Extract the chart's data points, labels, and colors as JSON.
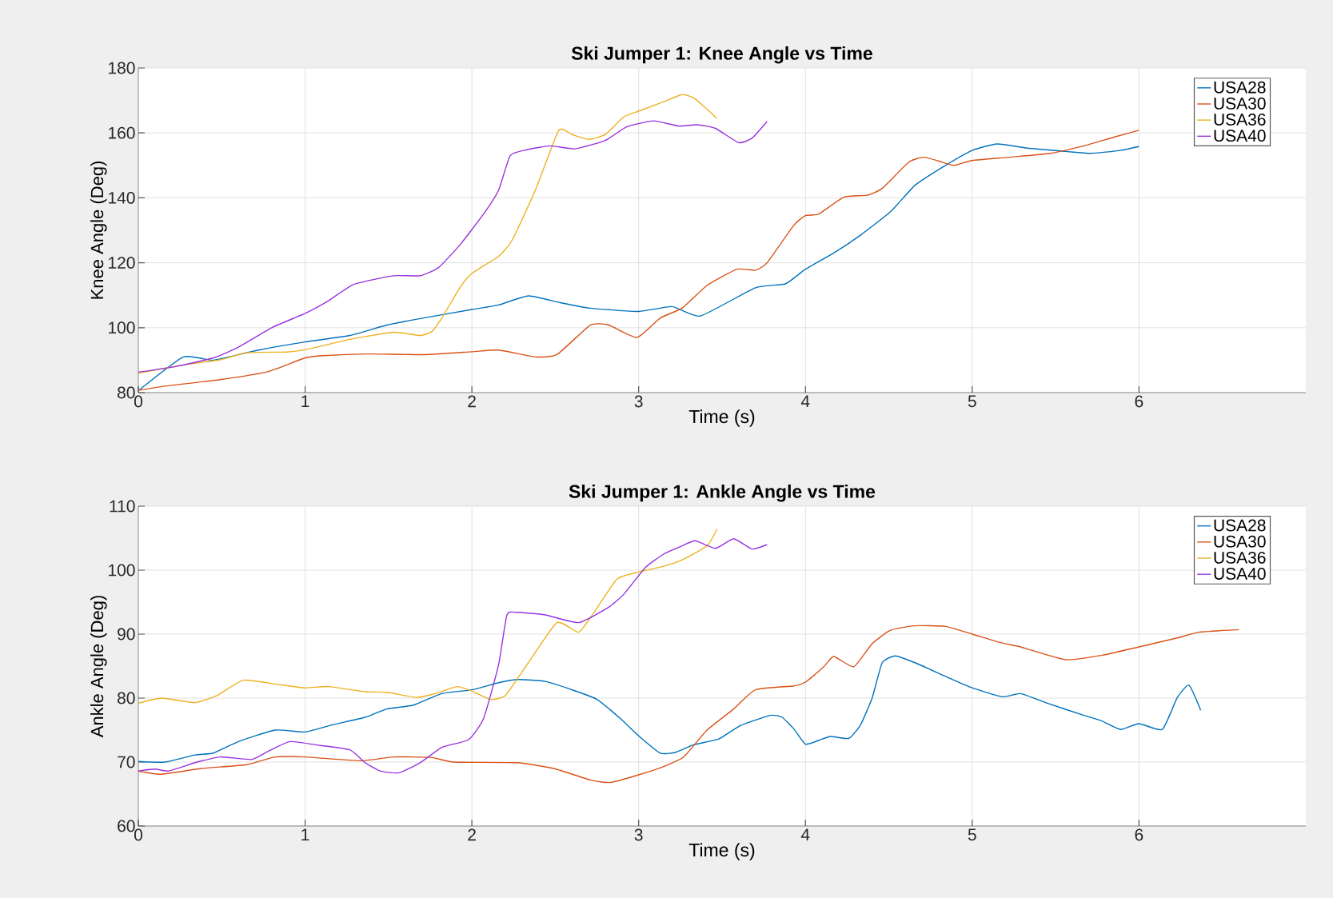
{
  "chart_data": [
    {
      "type": "line",
      "title": "Ski Jumper 1: Knee Angle vs Time",
      "xlabel": "Time (s)",
      "ylabel": "Knee Angle (Deg)",
      "xlim": [
        0,
        7
      ],
      "ylim": [
        80,
        180
      ],
      "xticks": [
        0,
        1,
        2,
        3,
        4,
        5,
        6
      ],
      "yticks": [
        80,
        100,
        120,
        140,
        160,
        180
      ],
      "grid": true,
      "legend": "top right",
      "series": [
        {
          "name": "USA28",
          "color": "#0072bd",
          "x": [
            0,
            0.27,
            0.45,
            0.71,
            1.0,
            1.27,
            1.49,
            1.71,
            2.0,
            2.16,
            2.34,
            2.53,
            2.71,
            3.0,
            3.2,
            3.37,
            3.7,
            3.88,
            4.0,
            4.17,
            4.33,
            4.51,
            4.66,
            4.84,
            5.0,
            5.15,
            5.33,
            5.56,
            5.71,
            5.89,
            6.0
          ],
          "values": [
            80.6,
            91,
            90,
            93,
            95.6,
            97.6,
            100.8,
            103,
            105.6,
            107,
            109.8,
            107.7,
            106,
            105,
            106.5,
            103.6,
            112.3,
            113.5,
            118,
            123,
            128.5,
            135.7,
            144,
            150,
            154.6,
            156.6,
            155.3,
            154.3,
            153.7,
            154.6,
            155.8
          ]
        },
        {
          "name": "USA30",
          "color": "#d95319",
          "x": [
            0,
            0.16,
            0.49,
            0.78,
            1.0,
            1.11,
            1.38,
            1.71,
            2.0,
            2.16,
            2.38,
            2.51,
            2.71,
            2.82,
            2.99,
            3.13,
            3.26,
            3.41,
            3.59,
            3.7,
            3.77,
            3.93,
            4.0,
            4.08,
            4.23,
            4.37,
            4.46,
            4.62,
            4.71,
            4.8,
            4.89,
            5.0,
            5.22,
            5.47,
            5.67,
            5.85,
            6.0
          ],
          "values": [
            80.7,
            82,
            84,
            86.5,
            90.7,
            91.4,
            91.9,
            91.7,
            92.6,
            93.1,
            91,
            91.7,
            100.8,
            100.8,
            97,
            103,
            106,
            113,
            118,
            117.7,
            120,
            131.5,
            134.5,
            135,
            140.2,
            140.8,
            142.9,
            151,
            152.5,
            151.3,
            150,
            151.5,
            152.5,
            153.7,
            156,
            158.7,
            160.8
          ]
        },
        {
          "name": "USA36",
          "color": "#edb120",
          "x": [
            0,
            0.29,
            0.49,
            0.65,
            0.89,
            1.0,
            1.27,
            1.53,
            1.69,
            1.76,
            1.82,
            1.93,
            2.0,
            2.16,
            2.24,
            2.38,
            2.52,
            2.6,
            2.7,
            2.8,
            2.91,
            3.0,
            3.15,
            3.26,
            3.33,
            3.41,
            3.47
          ],
          "values": [
            86,
            88.7,
            90.1,
            92.3,
            92.5,
            93.2,
            96.4,
            98.6,
            97.6,
            98.8,
            103,
            112.5,
            116.7,
            122,
            126.8,
            142.3,
            160.7,
            159.5,
            158,
            159.5,
            164.9,
            166.7,
            169.6,
            171.8,
            170.8,
            167.3,
            164.4
          ]
        },
        {
          "name": "USA40",
          "color": "#9933dd",
          "x": [
            0,
            0.23,
            0.45,
            0.6,
            0.8,
            1.0,
            1.14,
            1.29,
            1.53,
            1.69,
            1.8,
            1.93,
            2.07,
            2.16,
            2.23,
            2.33,
            2.47,
            2.62,
            2.8,
            2.93,
            3.09,
            3.24,
            3.35,
            3.46,
            3.6,
            3.68,
            3.77
          ],
          "values": [
            86.3,
            88.1,
            90.7,
            94,
            100,
            104.4,
            108.3,
            113.3,
            116,
            116,
            118.5,
            125.6,
            135,
            142.3,
            153,
            154.8,
            156,
            155.1,
            157.7,
            161.9,
            163.7,
            162.1,
            162.5,
            161.4,
            157,
            158.4,
            163.5
          ]
        }
      ]
    },
    {
      "type": "line",
      "title": "Ski Jumper 1: Ankle Angle vs Time",
      "xlabel": "Time (s)",
      "ylabel": "Ankle Angle (Deg)",
      "xlim": [
        0,
        7
      ],
      "ylim": [
        60,
        110
      ],
      "xticks": [
        0,
        1,
        2,
        3,
        4,
        5,
        6
      ],
      "yticks": [
        60,
        70,
        80,
        90,
        100,
        110
      ],
      "grid": true,
      "legend": "top right",
      "series": [
        {
          "name": "USA28",
          "color": "#0072bd",
          "x": [
            0,
            0.16,
            0.34,
            0.45,
            0.6,
            0.82,
            1.0,
            1.16,
            1.36,
            1.49,
            1.65,
            1.82,
            2.0,
            2.16,
            2.28,
            2.44,
            2.6,
            2.75,
            2.89,
            3.0,
            3.13,
            3.22,
            3.33,
            3.48,
            3.61,
            3.79,
            3.86,
            3.93,
            4.0,
            4.08,
            4.15,
            4.26,
            4.33,
            4.4,
            4.46,
            4.54,
            4.66,
            4.84,
            5.0,
            5.18,
            5.29,
            5.45,
            5.67,
            5.78,
            5.89,
            6.0,
            6.14,
            6.23,
            6.3,
            6.37
          ],
          "values": [
            70.1,
            70,
            71.1,
            71.4,
            73.2,
            75,
            74.7,
            75.8,
            77,
            78.3,
            78.9,
            80.7,
            81.3,
            82.4,
            82.9,
            82.6,
            81.3,
            79.8,
            76.8,
            74.1,
            71.4,
            71.5,
            72.7,
            73.6,
            75.7,
            77.3,
            77,
            75.2,
            72.8,
            73.4,
            74,
            73.7,
            75.8,
            80,
            85.5,
            86.6,
            85.5,
            83.4,
            81.6,
            80.2,
            80.7,
            79.2,
            77.3,
            76.4,
            75.1,
            76,
            75.1,
            80.1,
            82,
            78.1
          ]
        },
        {
          "name": "USA30",
          "color": "#d95319",
          "x": [
            0,
            0.14,
            0.38,
            0.65,
            0.82,
            1.0,
            1.33,
            1.53,
            1.76,
            1.89,
            2.27,
            2.49,
            2.71,
            2.83,
            3.0,
            3.15,
            3.27,
            3.41,
            3.57,
            3.7,
            3.93,
            4.0,
            4.11,
            4.17,
            4.29,
            4.4,
            4.51,
            4.65,
            4.84,
            5.0,
            5.18,
            5.29,
            5.56,
            5.78,
            6.0,
            6.23,
            6.36,
            6.6
          ],
          "values": [
            68.6,
            68.1,
            69,
            69.6,
            70.8,
            70.8,
            70.2,
            70.8,
            70.7,
            70,
            69.9,
            69,
            67.2,
            66.8,
            68,
            69.3,
            70.8,
            75,
            78.3,
            81.3,
            81.9,
            82.5,
            84.9,
            86.5,
            84.9,
            88.5,
            90.6,
            91.3,
            91.2,
            90,
            88.6,
            88,
            86,
            86.7,
            88,
            89.4,
            90.3,
            90.7
          ]
        },
        {
          "name": "USA36",
          "color": "#edb120",
          "x": [
            0,
            0.14,
            0.34,
            0.47,
            0.63,
            0.82,
            1.0,
            1.14,
            1.36,
            1.49,
            1.67,
            1.78,
            1.91,
            2.0,
            2.11,
            2.2,
            2.33,
            2.51,
            2.64,
            2.73,
            2.87,
            3.0,
            3.15,
            3.26,
            3.41,
            3.47
          ],
          "values": [
            79.2,
            80,
            79.3,
            80.4,
            82.8,
            82.2,
            81.6,
            81.8,
            81,
            80.9,
            80.1,
            80.7,
            81.8,
            81.1,
            79.8,
            80.4,
            85.2,
            91.8,
            90.3,
            93.3,
            98.6,
            99.7,
            100.6,
            101.6,
            103.8,
            106.4
          ]
        },
        {
          "name": "USA40",
          "color": "#9933dd",
          "x": [
            0,
            0.1,
            0.18,
            0.34,
            0.49,
            0.68,
            0.78,
            0.91,
            1.09,
            1.27,
            1.36,
            1.45,
            1.56,
            1.69,
            1.82,
            1.98,
            2.07,
            2.16,
            2.21,
            2.27,
            2.44,
            2.64,
            2.82,
            2.91,
            3.04,
            3.15,
            3.26,
            3.34,
            3.46,
            3.57,
            3.68,
            3.77
          ],
          "values": [
            68.6,
            68.9,
            68.6,
            69.9,
            70.8,
            70.4,
            71.7,
            73.2,
            72.6,
            71.9,
            69.9,
            68.6,
            68.3,
            69.9,
            72.3,
            73.5,
            76.8,
            85.2,
            93,
            93.4,
            93,
            91.8,
            94.2,
            96.2,
            100.4,
            102.5,
            103.8,
            104.6,
            103.4,
            104.9,
            103.3,
            104
          ]
        }
      ]
    }
  ]
}
